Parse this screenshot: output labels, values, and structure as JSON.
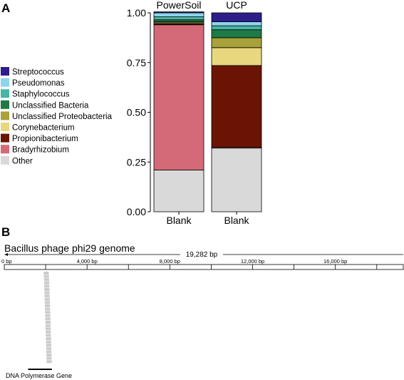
{
  "panels": {
    "a_label": "A",
    "b_label": "B"
  },
  "chart_data": [
    {
      "type": "bar",
      "stacked": true,
      "categories": [
        "PowerSoil",
        "UCP"
      ],
      "x_labels": [
        "Blank",
        "Blank"
      ],
      "ylim": [
        0,
        1
      ],
      "yticks": [
        "0.00",
        "0.25",
        "0.50",
        "0.75",
        "1.00"
      ],
      "grid": false,
      "legend_position": "left",
      "series": [
        {
          "name": "Other",
          "color": "#d9d9d9",
          "values": [
            0.21,
            0.32
          ]
        },
        {
          "name": "Bradyrhizobium",
          "color": "#d46a78",
          "values": [
            0.73,
            0.005
          ]
        },
        {
          "name": "Propionibacterium",
          "color": "#6b1404",
          "values": [
            0.005,
            0.41
          ]
        },
        {
          "name": "Corynebacterium",
          "color": "#e8d77e",
          "values": [
            0.005,
            0.09
          ]
        },
        {
          "name": "Unclassified Proteobacteria",
          "color": "#a9a23a",
          "values": [
            0.005,
            0.05
          ]
        },
        {
          "name": "Unclassified Bacteria",
          "color": "#1e7b45",
          "values": [
            0.01,
            0.04
          ]
        },
        {
          "name": "Staphylococcus",
          "color": "#48b5a6",
          "values": [
            0.015,
            0.02
          ]
        },
        {
          "name": "Pseudomonas",
          "color": "#8fd3ec",
          "values": [
            0.02,
            0.02
          ]
        },
        {
          "name": "Streptococcus",
          "color": "#2d1e8a",
          "values": [
            0.005,
            0.045
          ]
        }
      ],
      "legend_order": [
        "Streptococcus",
        "Pseudomonas",
        "Staphylococcus",
        "Unclassified Bacteria",
        "Unclassified Proteobacteria",
        "Corynebacterium",
        "Propionibacterium",
        "Bradyrhizobium",
        "Other"
      ]
    },
    {
      "type": "genome-coverage",
      "title": "Bacillus phage phi29 genome",
      "length_label": "19,282 bp",
      "genome_length": 19282,
      "ticks": [
        {
          "value": 0,
          "label": "0 bp"
        },
        {
          "value": 4000,
          "label": "4,000 bp"
        },
        {
          "value": 8000,
          "label": "8,000 bp"
        },
        {
          "value": 12000,
          "label": "12,000 bp"
        },
        {
          "value": 16000,
          "label": "16,000 bp"
        }
      ],
      "minor_ticks": [
        2000,
        6000,
        10000,
        14000,
        18000
      ],
      "reads_color": "#cccccc",
      "reads": [
        {
          "start": 1900,
          "end": 2150
        },
        {
          "start": 1910,
          "end": 2160
        },
        {
          "start": 1920,
          "end": 2170
        },
        {
          "start": 1925,
          "end": 2175
        },
        {
          "start": 1930,
          "end": 2180
        },
        {
          "start": 1935,
          "end": 2185
        },
        {
          "start": 1940,
          "end": 2190
        },
        {
          "start": 1945,
          "end": 2195
        },
        {
          "start": 1950,
          "end": 2200
        },
        {
          "start": 1955,
          "end": 2205
        },
        {
          "start": 1960,
          "end": 2210
        },
        {
          "start": 1965,
          "end": 2215
        },
        {
          "start": 1970,
          "end": 2220
        },
        {
          "start": 1975,
          "end": 2225
        },
        {
          "start": 1980,
          "end": 2230
        },
        {
          "start": 1985,
          "end": 2235
        },
        {
          "start": 1990,
          "end": 2240
        },
        {
          "start": 1995,
          "end": 2245
        },
        {
          "start": 2000,
          "end": 2250
        },
        {
          "start": 2005,
          "end": 2255
        },
        {
          "start": 2010,
          "end": 2260
        },
        {
          "start": 2015,
          "end": 2265
        },
        {
          "start": 2020,
          "end": 2270
        },
        {
          "start": 2025,
          "end": 2275
        },
        {
          "start": 2030,
          "end": 2280
        },
        {
          "start": 2035,
          "end": 2285
        },
        {
          "start": 2040,
          "end": 2290
        },
        {
          "start": 2045,
          "end": 2295
        }
      ],
      "gene": {
        "label": "DNA Polymerase Gene",
        "start": 1150,
        "end": 2300
      }
    }
  ]
}
